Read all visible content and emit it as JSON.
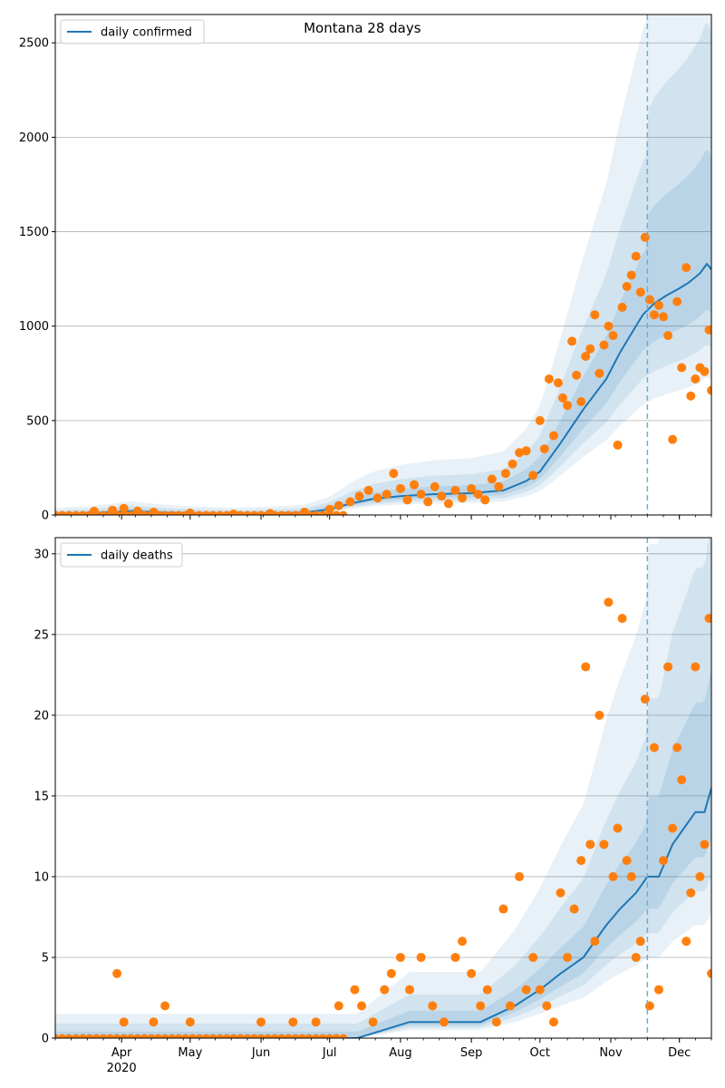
{
  "chart_data": [
    {
      "type": "line",
      "title": "Montana 28 days",
      "xlabel": "",
      "ylabel": "",
      "ylim": [
        0,
        2650
      ],
      "yticks": [
        0,
        500,
        1000,
        1500,
        2000,
        2500
      ],
      "x_range": [
        "2020-03-03",
        "2020-12-15"
      ],
      "xtick_labels": [
        "Apr",
        "May",
        "Jun",
        "Jul",
        "Aug",
        "Sep",
        "Oct",
        "Nov",
        "Dec"
      ],
      "year_label": "2020",
      "forecast_start": "2020-11-17",
      "grid": "horizontal",
      "legend": "top-left",
      "colors": {
        "line": "#1f77b4",
        "points": "#ff7f0e",
        "band": "#1f77b4"
      },
      "series": [
        {
          "name": "daily confirmed",
          "kind": "line",
          "x": [
            "2020-03-03",
            "2020-03-20",
            "2020-04-05",
            "2020-04-20",
            "2020-05-05",
            "2020-05-20",
            "2020-06-05",
            "2020-06-20",
            "2020-07-01",
            "2020-07-10",
            "2020-07-20",
            "2020-08-01",
            "2020-08-15",
            "2020-09-01",
            "2020-09-15",
            "2020-09-25",
            "2020-10-01",
            "2020-10-10",
            "2020-10-20",
            "2020-10-30",
            "2020-11-05",
            "2020-11-10",
            "2020-11-15",
            "2020-11-20",
            "2020-11-25",
            "2020-12-01",
            "2020-12-05",
            "2020-12-10",
            "2020-12-13",
            "2020-12-15"
          ],
          "y": [
            5,
            10,
            20,
            12,
            8,
            6,
            8,
            12,
            30,
            60,
            85,
            100,
            110,
            115,
            130,
            180,
            230,
            380,
            560,
            720,
            860,
            960,
            1060,
            1120,
            1160,
            1200,
            1230,
            1280,
            1330,
            1300
          ]
        },
        {
          "name": "observed daily confirmed",
          "kind": "points",
          "x": [
            "2020-03-20",
            "2020-03-28",
            "2020-04-02",
            "2020-04-08",
            "2020-04-15",
            "2020-05-01",
            "2020-05-20",
            "2020-06-05",
            "2020-06-20",
            "2020-07-01",
            "2020-07-05",
            "2020-07-10",
            "2020-07-14",
            "2020-07-18",
            "2020-07-22",
            "2020-07-26",
            "2020-07-29",
            "2020-08-01",
            "2020-08-04",
            "2020-08-07",
            "2020-08-10",
            "2020-08-13",
            "2020-08-16",
            "2020-08-19",
            "2020-08-22",
            "2020-08-25",
            "2020-08-28",
            "2020-09-01",
            "2020-09-04",
            "2020-09-07",
            "2020-09-10",
            "2020-09-13",
            "2020-09-16",
            "2020-09-19",
            "2020-09-22",
            "2020-09-25",
            "2020-09-28",
            "2020-10-01",
            "2020-10-03",
            "2020-10-05",
            "2020-10-07",
            "2020-10-09",
            "2020-10-11",
            "2020-10-13",
            "2020-10-15",
            "2020-10-17",
            "2020-10-19",
            "2020-10-21",
            "2020-10-23",
            "2020-10-25",
            "2020-10-27",
            "2020-10-29",
            "2020-10-31",
            "2020-11-02",
            "2020-11-04",
            "2020-11-06",
            "2020-11-08",
            "2020-11-10",
            "2020-11-12",
            "2020-11-14",
            "2020-11-16",
            "2020-11-18",
            "2020-11-20",
            "2020-11-22",
            "2020-11-24",
            "2020-11-26",
            "2020-11-28",
            "2020-11-30",
            "2020-12-02",
            "2020-12-04",
            "2020-12-06",
            "2020-12-08",
            "2020-12-10",
            "2020-12-12",
            "2020-12-14",
            "2020-12-15"
          ],
          "y": [
            20,
            25,
            35,
            20,
            15,
            10,
            5,
            8,
            15,
            30,
            50,
            70,
            100,
            130,
            90,
            110,
            220,
            140,
            80,
            160,
            110,
            70,
            150,
            100,
            60,
            130,
            90,
            140,
            110,
            80,
            190,
            150,
            220,
            270,
            330,
            340,
            210,
            500,
            350,
            720,
            420,
            700,
            620,
            580,
            920,
            740,
            600,
            840,
            880,
            1060,
            750,
            900,
            1000,
            950,
            370,
            1100,
            1210,
            1270,
            1370,
            1180,
            1470,
            1140,
            1060,
            1110,
            1050,
            950,
            400,
            1130,
            780,
            1310,
            630,
            720,
            780,
            760,
            980,
            660
          ]
        }
      ]
    },
    {
      "type": "line",
      "title": "",
      "xlabel": "",
      "ylabel": "",
      "ylim": [
        0,
        31
      ],
      "yticks": [
        0,
        5,
        10,
        15,
        20,
        25,
        30
      ],
      "x_range": [
        "2020-03-03",
        "2020-12-15"
      ],
      "xtick_labels": [
        "Apr",
        "May",
        "Jun",
        "Jul",
        "Aug",
        "Sep",
        "Oct",
        "Nov",
        "Dec"
      ],
      "year_label": "2020",
      "forecast_start": "2020-11-17",
      "grid": "horizontal",
      "legend": "top-left",
      "colors": {
        "line": "#1f77b4",
        "points": "#ff7f0e",
        "band": "#1f77b4"
      },
      "series": [
        {
          "name": "daily deaths",
          "kind": "line",
          "x": [
            "2020-03-03",
            "2020-07-13",
            "2020-08-05",
            "2020-08-25",
            "2020-09-05",
            "2020-09-20",
            "2020-10-01",
            "2020-10-10",
            "2020-10-20",
            "2020-10-30",
            "2020-11-05",
            "2020-11-12",
            "2020-11-17",
            "2020-11-22",
            "2020-11-28",
            "2020-12-03",
            "2020-12-08",
            "2020-12-12",
            "2020-12-15"
          ],
          "y": [
            0,
            0,
            1,
            1,
            1,
            2,
            3,
            4,
            5,
            7,
            8,
            9,
            10,
            10,
            12,
            13,
            14,
            14,
            15.5
          ]
        },
        {
          "name": "observed daily deaths",
          "kind": "points",
          "x": [
            "2020-03-30",
            "2020-04-02",
            "2020-04-15",
            "2020-04-20",
            "2020-05-01",
            "2020-06-01",
            "2020-06-15",
            "2020-06-25",
            "2020-07-05",
            "2020-07-12",
            "2020-07-15",
            "2020-07-20",
            "2020-07-25",
            "2020-07-28",
            "2020-08-01",
            "2020-08-05",
            "2020-08-10",
            "2020-08-15",
            "2020-08-20",
            "2020-08-25",
            "2020-08-28",
            "2020-09-01",
            "2020-09-05",
            "2020-09-08",
            "2020-09-12",
            "2020-09-15",
            "2020-09-18",
            "2020-09-22",
            "2020-09-25",
            "2020-09-28",
            "2020-10-01",
            "2020-10-04",
            "2020-10-07",
            "2020-10-10",
            "2020-10-13",
            "2020-10-16",
            "2020-10-19",
            "2020-10-21",
            "2020-10-23",
            "2020-10-25",
            "2020-10-27",
            "2020-10-29",
            "2020-10-31",
            "2020-11-02",
            "2020-11-04",
            "2020-11-06",
            "2020-11-08",
            "2020-11-10",
            "2020-11-12",
            "2020-11-14",
            "2020-11-16",
            "2020-11-18",
            "2020-11-20",
            "2020-11-22",
            "2020-11-24",
            "2020-11-26",
            "2020-11-28",
            "2020-11-30",
            "2020-12-02",
            "2020-12-04",
            "2020-12-06",
            "2020-12-08",
            "2020-12-10",
            "2020-12-12",
            "2020-12-14",
            "2020-12-15"
          ],
          "y": [
            4,
            1,
            1,
            2,
            1,
            1,
            1,
            1,
            2,
            3,
            2,
            1,
            3,
            4,
            5,
            3,
            5,
            2,
            1,
            5,
            6,
            4,
            2,
            3,
            1,
            8,
            2,
            10,
            3,
            5,
            3,
            2,
            1,
            9,
            5,
            8,
            11,
            23,
            12,
            6,
            20,
            12,
            27,
            10,
            13,
            26,
            11,
            10,
            5,
            6,
            21,
            2,
            18,
            3,
            11,
            23,
            13,
            18,
            16,
            6,
            9,
            23,
            10,
            12,
            26,
            4
          ]
        }
      ]
    }
  ]
}
